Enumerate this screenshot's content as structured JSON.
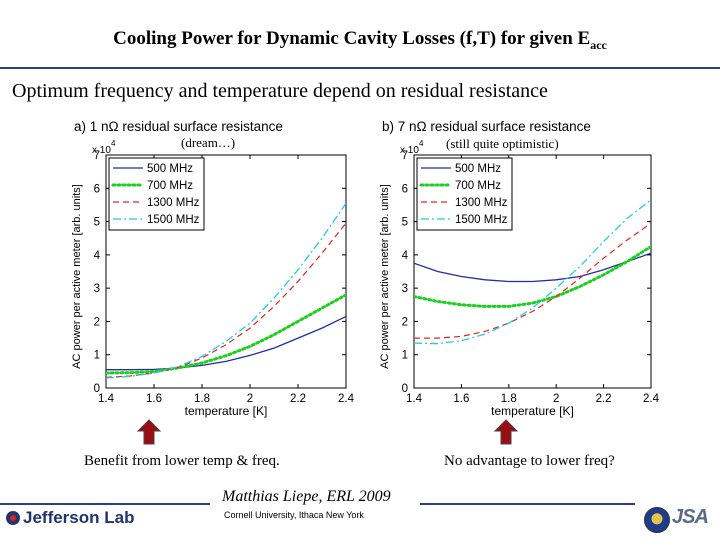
{
  "slide": {
    "title": "Cooling Power for Dynamic Cavity Losses (f,T) for given E",
    "title_sub": "acc",
    "subtitle": "Optimum frequency and temperature depend on residual resistance",
    "author": "Matthias Liepe, ERL 2009",
    "affiliation": "Cornell University, Ithaca New York",
    "logo_text": "Jefferson Lab",
    "jsa_text": "JSA"
  },
  "colors": {
    "rule": "#2b3f8f",
    "arrow": "#9a0d12",
    "arrow_outline": "#444444",
    "series": [
      "#1f2fa6",
      "#1fcf1f",
      "#e0252a",
      "#22cce0"
    ]
  },
  "charts": [
    {
      "note": "(dream…)",
      "caption": "Benefit from lower temp & freq."
    },
    {
      "note": "(still quite optimistic)",
      "caption": "No advantage to lower freq?"
    }
  ],
  "chart_data": [
    {
      "type": "line",
      "title": "a) 1 nΩ residual surface resistance",
      "xlabel": "temperature [K]",
      "ylabel": "AC power per active meter [arb. units]",
      "y_multiplier": "x 10",
      "y_exponent": "4",
      "xlim": [
        1.4,
        2.4
      ],
      "ylim": [
        0,
        7
      ],
      "xticks": [
        1.4,
        1.6,
        1.8,
        2,
        2.2,
        2.4
      ],
      "yticks": [
        0,
        1,
        2,
        3,
        4,
        5,
        6,
        7
      ],
      "grid": false,
      "legend_position": "top-left",
      "x": [
        1.4,
        1.5,
        1.6,
        1.7,
        1.8,
        1.9,
        2.0,
        2.1,
        2.2,
        2.3,
        2.4
      ],
      "series": [
        {
          "name": "500 MHz",
          "style": "solid",
          "values": [
            0.55,
            0.55,
            0.56,
            0.6,
            0.68,
            0.8,
            0.98,
            1.2,
            1.5,
            1.8,
            2.15
          ]
        },
        {
          "name": "700 MHz",
          "style": "dotted",
          "values": [
            0.45,
            0.46,
            0.5,
            0.6,
            0.75,
            0.97,
            1.25,
            1.6,
            2.0,
            2.4,
            2.8
          ]
        },
        {
          "name": "1300 MHz",
          "style": "dashed",
          "values": [
            0.32,
            0.36,
            0.45,
            0.62,
            0.9,
            1.3,
            1.8,
            2.45,
            3.2,
            4.05,
            4.95
          ]
        },
        {
          "name": "1500 MHz",
          "style": "dashdot",
          "values": [
            0.3,
            0.35,
            0.45,
            0.64,
            0.95,
            1.4,
            1.95,
            2.7,
            3.55,
            4.5,
            5.55
          ]
        }
      ]
    },
    {
      "type": "line",
      "title": "b) 7 nΩ residual surface resistance",
      "xlabel": "temperature [K]",
      "ylabel": "AC power per active meter [arb. units]",
      "y_multiplier": "x 10",
      "y_exponent": "4",
      "xlim": [
        1.4,
        2.4
      ],
      "ylim": [
        0,
        7
      ],
      "xticks": [
        1.4,
        1.6,
        1.8,
        2,
        2.2,
        2.4
      ],
      "yticks": [
        0,
        1,
        2,
        3,
        4,
        5,
        6,
        7
      ],
      "grid": false,
      "legend_position": "top-left",
      "x": [
        1.4,
        1.5,
        1.6,
        1.7,
        1.8,
        1.9,
        2.0,
        2.1,
        2.2,
        2.3,
        2.4
      ],
      "series": [
        {
          "name": "500 MHz",
          "style": "solid",
          "values": [
            3.75,
            3.5,
            3.35,
            3.25,
            3.2,
            3.2,
            3.25,
            3.35,
            3.55,
            3.8,
            4.05
          ]
        },
        {
          "name": "700 MHz",
          "style": "dotted",
          "values": [
            2.75,
            2.6,
            2.5,
            2.45,
            2.45,
            2.55,
            2.75,
            3.05,
            3.4,
            3.8,
            4.25
          ]
        },
        {
          "name": "1300 MHz",
          "style": "dashed",
          "values": [
            1.5,
            1.5,
            1.55,
            1.7,
            1.95,
            2.3,
            2.75,
            3.3,
            3.9,
            4.45,
            4.95
          ]
        },
        {
          "name": "1500 MHz",
          "style": "dashdot",
          "values": [
            1.35,
            1.33,
            1.42,
            1.62,
            1.95,
            2.4,
            3.0,
            3.65,
            4.4,
            5.1,
            5.65
          ]
        }
      ]
    }
  ]
}
